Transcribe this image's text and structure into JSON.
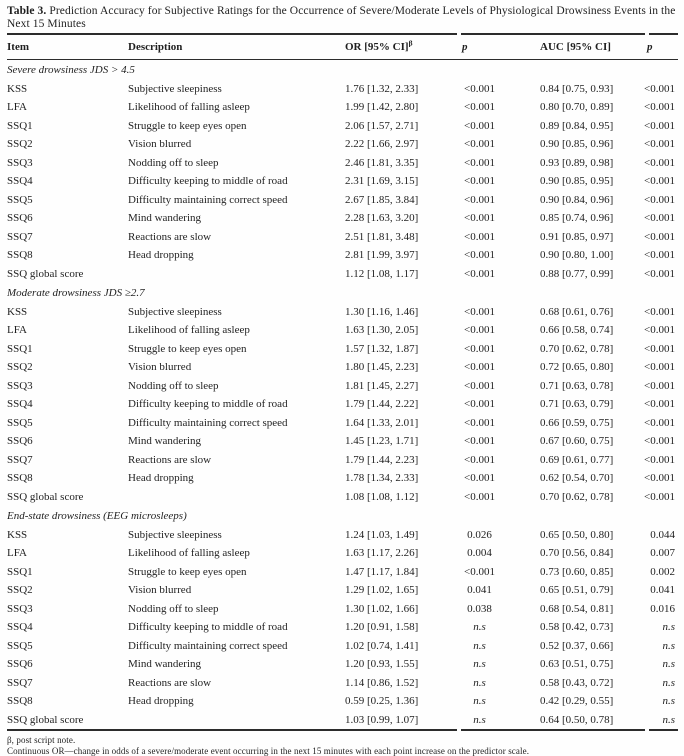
{
  "table": {
    "title_label": "Table 3.",
    "title_text": " Prediction Accuracy for Subjective Ratings for the Occurrence of Severe/Moderate Levels of Physiological Drowsiness Events in the Next 15 Minutes",
    "columns": [
      "Item",
      "Description",
      "OR [95% CI]",
      "p",
      "AUC [95% CI]",
      "p"
    ],
    "or_superscript": "β",
    "sections": [
      {
        "header": "Severe drowsiness JDS > 4.5",
        "rows": [
          [
            "KSS",
            "Subjective sleepiness",
            "1.76 [1.32, 2.33]",
            "<0.001",
            "0.84 [0.75, 0.93]",
            "<0.001"
          ],
          [
            "LFA",
            "Likelihood of falling asleep",
            "1.99 [1.42, 2.80]",
            "<0.001",
            "0.80 [0.70, 0.89]",
            "<0.001"
          ],
          [
            "SSQ1",
            "Struggle to keep eyes open",
            "2.06 [1.57, 2.71]",
            "<0.001",
            "0.89 [0.84, 0.95]",
            "<0.001"
          ],
          [
            "SSQ2",
            "Vision blurred",
            "2.22 [1.66, 2.97]",
            "<0.001",
            "0.90 [0.85, 0.96]",
            "<0.001"
          ],
          [
            "SSQ3",
            "Nodding off to sleep",
            "2.46 [1.81, 3.35]",
            "<0.001",
            "0.93 [0.89, 0.98]",
            "<0.001"
          ],
          [
            "SSQ4",
            "Difficulty keeping to middle of road",
            "2.31 [1.69, 3.15]",
            "<0.001",
            "0.90 [0.85, 0.95]",
            "<0.001"
          ],
          [
            "SSQ5",
            "Difficulty maintaining correct speed",
            "2.67 [1.85, 3.84]",
            "<0.001",
            "0.90 [0.84, 0.96]",
            "<0.001"
          ],
          [
            "SSQ6",
            "Mind wandering",
            "2.28 [1.63, 3.20]",
            "<0.001",
            "0.85 [0.74, 0.96]",
            "<0.001"
          ],
          [
            "SSQ7",
            "Reactions are slow",
            "2.51 [1.81, 3.48]",
            "<0.001",
            "0.91 [0.85, 0.97]",
            "<0.001"
          ],
          [
            "SSQ8",
            "Head dropping",
            "2.81 [1.99, 3.97]",
            "<0.001",
            "0.90 [0.80, 1.00]",
            "<0.001"
          ],
          [
            "SSQ global score",
            "",
            "1.12 [1.08, 1.17]",
            "<0.001",
            "0.88 [0.77, 0.99]",
            "<0.001"
          ]
        ]
      },
      {
        "header": "Moderate drowsiness JDS ≥2.7",
        "rows": [
          [
            "KSS",
            "Subjective sleepiness",
            "1.30 [1.16, 1.46]",
            "<0.001",
            "0.68 [0.61, 0.76]",
            "<0.001"
          ],
          [
            "LFA",
            "Likelihood of falling asleep",
            "1.63 [1.30, 2.05]",
            "<0.001",
            "0.66 [0.58, 0.74]",
            "<0.001"
          ],
          [
            "SSQ1",
            "Struggle to keep eyes open",
            "1.57 [1.32, 1.87]",
            "<0.001",
            "0.70 [0.62, 0.78]",
            "<0.001"
          ],
          [
            "SSQ2",
            "Vision blurred",
            "1.80 [1.45, 2.23]",
            "<0.001",
            "0.72 [0.65, 0.80]",
            "<0.001"
          ],
          [
            "SSQ3",
            "Nodding off to sleep",
            "1.81 [1.45, 2.27]",
            "<0.001",
            "0.71 [0.63, 0.78]",
            "<0.001"
          ],
          [
            "SSQ4",
            "Difficulty keeping to middle of road",
            "1.79 [1.44, 2.22]",
            "<0.001",
            "0.71 [0.63, 0.79]",
            "<0.001"
          ],
          [
            "SSQ5",
            "Difficulty maintaining correct speed",
            "1.64 [1.33, 2.01]",
            "<0.001",
            "0.66 [0.59, 0.75]",
            "<0.001"
          ],
          [
            "SSQ6",
            "Mind wandering",
            "1.45 [1.23, 1.71]",
            "<0.001",
            "0.67 [0.60, 0.75]",
            "<0.001"
          ],
          [
            "SSQ7",
            "Reactions are slow",
            "1.79 [1.44, 2.23]",
            "<0.001",
            "0.69 [0.61, 0.77]",
            "<0.001"
          ],
          [
            "SSQ8",
            "Head dropping",
            "1.78 [1.34, 2.33]",
            "<0.001",
            "0.62 [0.54, 0.70]",
            "<0.001"
          ],
          [
            "SSQ global score",
            "",
            "1.08 [1.08, 1.12]",
            "<0.001",
            "0.70 [0.62, 0.78]",
            "<0.001"
          ]
        ]
      },
      {
        "header": "End-state drowsiness (EEG microsleeps)",
        "rows": [
          [
            "KSS",
            "Subjective sleepiness",
            "1.24 [1.03, 1.49]",
            "0.026",
            "0.65 [0.50, 0.80]",
            "0.044"
          ],
          [
            "LFA",
            "Likelihood of falling asleep",
            "1.63 [1.17, 2.26]",
            "0.004",
            "0.70 [0.56, 0.84]",
            "0.007"
          ],
          [
            "SSQ1",
            "Struggle to keep eyes open",
            "1.47 [1.17, 1.84]",
            "<0.001",
            "0.73 [0.60, 0.85]",
            "0.002"
          ],
          [
            "SSQ2",
            "Vision blurred",
            "1.29 [1.02, 1.65]",
            "0.041",
            "0.65 [0.51, 0.79]",
            "0.041"
          ],
          [
            "SSQ3",
            "Nodding off to sleep",
            "1.30 [1.02, 1.66]",
            "0.038",
            "0.68 [0.54, 0.81]",
            "0.016"
          ],
          [
            "SSQ4",
            "Difficulty keeping to middle of road",
            "1.20 [0.91, 1.58]",
            "n.s",
            "0.58 [0.42, 0.73]",
            "n.s"
          ],
          [
            "SSQ5",
            "Difficulty maintaining correct speed",
            "1.02 [0.74, 1.41]",
            "n.s",
            "0.52 [0.37, 0.66]",
            "n.s"
          ],
          [
            "SSQ6",
            "Mind wandering",
            "1.20 [0.93, 1.55]",
            "n.s",
            "0.63 [0.51, 0.75]",
            "n.s"
          ],
          [
            "SSQ7",
            "Reactions are slow",
            "1.14 [0.86, 1.52]",
            "n.s",
            "0.58 [0.43, 0.72]",
            "n.s"
          ],
          [
            "SSQ8",
            "Head dropping",
            "0.59 [0.25, 1.36]",
            "n.s",
            "0.42 [0.29, 0.55]",
            "n.s"
          ],
          [
            "SSQ global score",
            "",
            "1.03 [0.99, 1.07]",
            "n.s",
            "0.64 [0.50, 0.78]",
            "n.s"
          ]
        ]
      }
    ],
    "footnotes": [
      "β, post script note.",
      "Continuous OR—change in odds of a severe/moderate event occurring in the next 15 minutes with each point increase on the predictor scale."
    ]
  }
}
